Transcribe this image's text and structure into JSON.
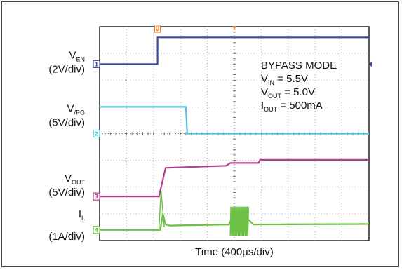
{
  "chart_data": {
    "type": "line",
    "title": "",
    "xlabel": "Time (400µs/div)",
    "ylabel": "",
    "grid": true,
    "divisions": {
      "x": 10,
      "y": 8
    },
    "channels": [
      {
        "id": "1",
        "name_main": "V",
        "name_sub": "EN",
        "scale": "(2V/div)",
        "color": "#3b4ba0",
        "marker_level_div": 6.6,
        "points": [
          [
            0,
            6.6
          ],
          [
            2.15,
            6.6
          ],
          [
            2.15,
            7.6
          ],
          [
            10,
            7.6
          ]
        ]
      },
      {
        "id": "2",
        "name_main": "V",
        "name_sub": "/PG",
        "scale": "(5V/div)",
        "color": "#4ec3d6",
        "marker_level_div": 4.0,
        "points": [
          [
            0,
            5.0
          ],
          [
            3.2,
            5.0
          ],
          [
            3.25,
            4.0
          ],
          [
            10,
            4.0
          ]
        ]
      },
      {
        "id": "3",
        "name_main": "V",
        "name_sub": "OUT",
        "scale": "(5V/div)",
        "color": "#b33d94",
        "marker_level_div": 1.65,
        "points": [
          [
            0,
            1.65
          ],
          [
            2.2,
            1.65
          ],
          [
            2.45,
            2.72
          ],
          [
            4.7,
            2.8
          ],
          [
            4.85,
            2.9
          ],
          [
            5.9,
            2.9
          ],
          [
            5.95,
            3.02
          ],
          [
            10,
            3.02
          ]
        ]
      },
      {
        "id": "4",
        "name_main": "I",
        "name_sub": "L",
        "scale": "(1A/div)",
        "color": "#6cc043",
        "marker_level_div": 0.4,
        "points": [
          [
            0,
            0.4
          ],
          [
            2.25,
            0.4
          ],
          [
            2.35,
            1.0
          ],
          [
            2.45,
            0.6
          ],
          [
            2.6,
            0.56
          ],
          [
            4.8,
            0.6
          ],
          [
            4.9,
            0.82
          ],
          [
            5.5,
            0.82
          ],
          [
            5.7,
            0.6
          ],
          [
            10,
            0.62
          ]
        ]
      }
    ],
    "annotations": [
      {
        "main": "BYPASS MODE",
        "sub": "",
        "rest": ""
      },
      {
        "main": "V",
        "sub": "IN",
        "rest": " = 5.5V"
      },
      {
        "main": "V",
        "sub": "OUT",
        "rest": " = 5.0V"
      },
      {
        "main": "I",
        "sub": "OUT",
        "rest": " = 500mA"
      }
    ],
    "trigger_marker": {
      "label": "U",
      "color": "#e87b1e",
      "x_div": 2.15
    },
    "center_marker_color": "#e87b1e",
    "right_marker_color": "#3b4ba0"
  }
}
